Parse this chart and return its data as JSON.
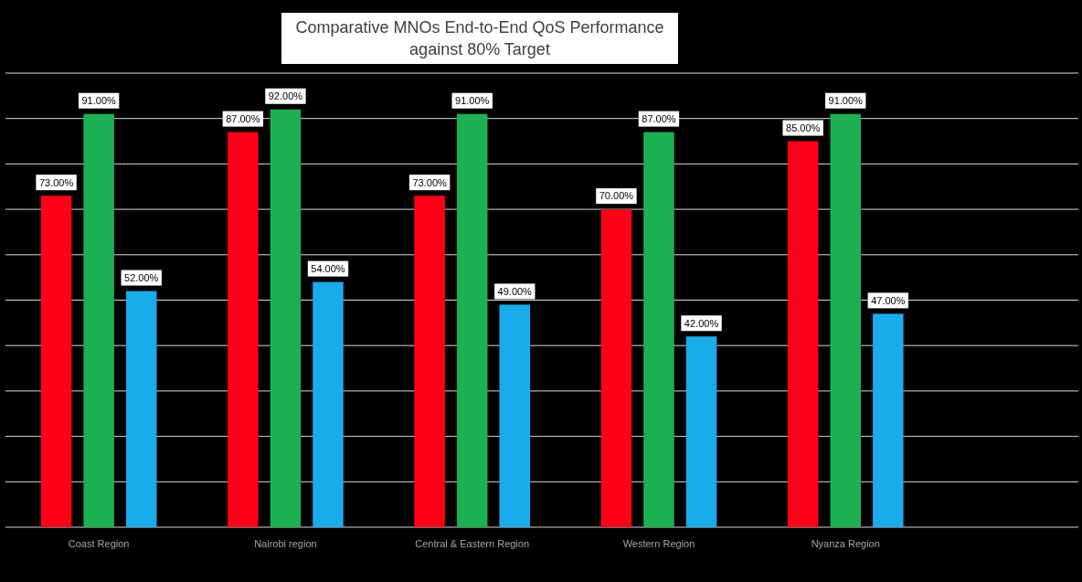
{
  "chart_data": {
    "type": "bar",
    "title": "Comparative MNOs End-to-End QoS Performance against 80% Target",
    "categories": [
      "Coast Region",
      "Nairobi region",
      "Central & Eastern Region",
      "Western Region",
      "Nyanza Region"
    ],
    "series": [
      {
        "color": "#ff0019",
        "values": [
          73,
          87,
          73,
          70,
          85
        ],
        "value_labels": [
          "73.00%",
          "87.00%",
          "73.00%",
          "70.00%",
          "85.00%"
        ]
      },
      {
        "color": "#1db052",
        "values": [
          91,
          92,
          91,
          87,
          91
        ],
        "value_labels": [
          "91.00%",
          "92.00%",
          "91.00%",
          "87.00%",
          "91.00%"
        ]
      },
      {
        "color": "#1aacea",
        "values": [
          52,
          54,
          49,
          42,
          47
        ],
        "value_labels": [
          "52.00%",
          "54.00%",
          "49.00%",
          "42.00%",
          "47.00%"
        ]
      }
    ],
    "ylim": [
      0,
      100
    ],
    "yticks": [
      {
        "value": 0,
        "label": null
      },
      {
        "value": 10,
        "label": null
      },
      {
        "value": 20,
        "label": null
      },
      {
        "value": 30,
        "label": null
      },
      {
        "value": 40,
        "label": null
      },
      {
        "value": 50,
        "label": null
      },
      {
        "value": 60,
        "label": null
      },
      {
        "value": 70,
        "label": null
      },
      {
        "value": 80,
        "label": null
      },
      {
        "value": 90,
        "label": null
      },
      {
        "value": 100,
        "label": null
      }
    ],
    "grid": "y",
    "tick_labels": "x"
  }
}
